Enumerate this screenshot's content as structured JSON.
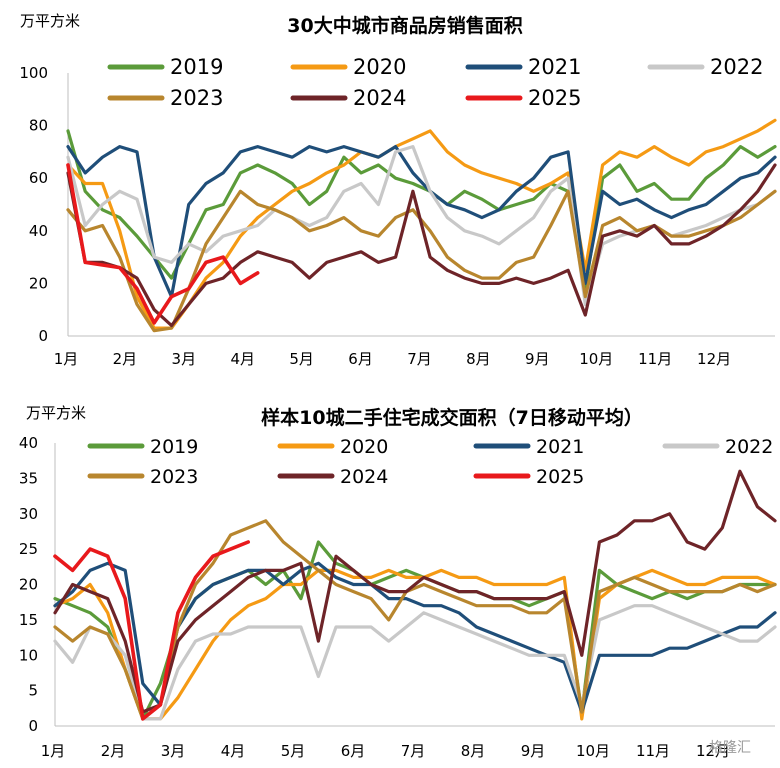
{
  "watermark": "格隆汇",
  "chart_data": [
    {
      "type": "line",
      "title": "30大中城市商品房销售面积",
      "unit_label": "万平方米",
      "ylim": [
        0,
        100
      ],
      "yticks": [
        "0",
        "20",
        "40",
        "60",
        "80",
        "100"
      ],
      "months": [
        "1月",
        "2月",
        "3月",
        "4月",
        "5月",
        "6月",
        "7月",
        "8月",
        "9月",
        "10月",
        "11月",
        "12月"
      ],
      "legend_position": "top",
      "series": [
        {
          "name": "2019",
          "color": "#5b9b3a",
          "values": [
            78,
            55,
            48,
            45,
            38,
            30,
            22,
            35,
            48,
            50,
            62,
            65,
            62,
            58,
            50,
            55,
            68,
            62,
            65,
            60,
            58,
            55,
            50,
            55,
            52,
            48,
            50,
            52,
            58,
            55,
            18,
            60,
            65,
            55,
            58,
            52,
            52,
            60,
            65,
            72,
            68,
            72
          ]
        },
        {
          "name": "2020",
          "color": "#f59a14",
          "values": [
            65,
            58,
            58,
            40,
            15,
            3,
            3,
            12,
            22,
            28,
            38,
            45,
            50,
            55,
            58,
            62,
            65,
            70,
            68,
            72,
            75,
            78,
            70,
            65,
            62,
            60,
            58,
            55,
            58,
            62,
            25,
            65,
            70,
            68,
            72,
            68,
            65,
            70,
            72,
            75,
            78,
            82
          ]
        },
        {
          "name": "2021",
          "color": "#1f4e79",
          "values": [
            72,
            62,
            68,
            72,
            70,
            30,
            15,
            50,
            58,
            62,
            70,
            72,
            70,
            68,
            72,
            70,
            72,
            70,
            68,
            72,
            62,
            55,
            50,
            48,
            45,
            48,
            55,
            60,
            68,
            70,
            20,
            55,
            50,
            52,
            48,
            45,
            48,
            50,
            55,
            60,
            62,
            68
          ]
        },
        {
          "name": "2022",
          "color": "#c8c8c8",
          "values": [
            68,
            42,
            50,
            55,
            52,
            30,
            28,
            35,
            32,
            38,
            40,
            42,
            48,
            45,
            42,
            45,
            55,
            58,
            50,
            70,
            72,
            55,
            45,
            40,
            38,
            35,
            40,
            45,
            55,
            60,
            12,
            35,
            38,
            40,
            42,
            38,
            40,
            42,
            45,
            48,
            50,
            55
          ]
        },
        {
          "name": "2023",
          "color": "#b8862e",
          "values": [
            48,
            40,
            42,
            30,
            12,
            2,
            3,
            18,
            35,
            45,
            55,
            50,
            48,
            45,
            40,
            42,
            45,
            40,
            38,
            45,
            48,
            40,
            30,
            25,
            22,
            22,
            28,
            30,
            42,
            55,
            15,
            42,
            45,
            40,
            42,
            38,
            38,
            40,
            42,
            45,
            50,
            55
          ]
        },
        {
          "name": "2024",
          "color": "#6e2428",
          "values": [
            62,
            28,
            28,
            26,
            22,
            10,
            4,
            12,
            20,
            22,
            28,
            32,
            30,
            28,
            22,
            28,
            30,
            32,
            28,
            30,
            55,
            30,
            25,
            22,
            20,
            20,
            22,
            20,
            22,
            25,
            8,
            38,
            40,
            38,
            42,
            35,
            35,
            38,
            42,
            48,
            55,
            65
          ]
        },
        {
          "name": "2025",
          "color": "#e8191c",
          "values": [
            65,
            28,
            27,
            26,
            18,
            5,
            15,
            18,
            28,
            30,
            20,
            24
          ]
        }
      ]
    },
    {
      "type": "line",
      "title": "样本10城二手住宅成交面积（7日移动平均）",
      "unit_label": "万平方米",
      "ylim": [
        0,
        40
      ],
      "yticks": [
        "0",
        "5",
        "10",
        "15",
        "20",
        "25",
        "30",
        "35",
        "40"
      ],
      "months": [
        "1月",
        "2月",
        "3月",
        "4月",
        "5月",
        "6月",
        "7月",
        "8月",
        "9月",
        "10月",
        "11月",
        "12月"
      ],
      "legend_position": "top",
      "series": [
        {
          "name": "2019",
          "color": "#5b9b3a",
          "values": [
            18,
            17,
            16,
            14,
            8,
            1,
            6,
            14,
            18,
            20,
            21,
            22,
            20,
            22,
            18,
            26,
            23,
            22,
            20,
            21,
            22,
            21,
            20,
            19,
            19,
            18,
            18,
            17,
            18,
            19,
            2,
            22,
            20,
            19,
            18,
            19,
            18,
            19,
            19,
            20,
            20,
            20
          ]
        },
        {
          "name": "2020",
          "color": "#f59a14",
          "values": [
            17,
            18,
            20,
            16,
            8,
            1,
            1,
            4,
            8,
            12,
            15,
            17,
            18,
            20,
            20,
            22,
            22,
            21,
            21,
            22,
            21,
            21,
            22,
            21,
            21,
            20,
            20,
            20,
            20,
            21,
            1,
            18,
            20,
            21,
            22,
            21,
            20,
            20,
            21,
            21,
            21,
            20
          ]
        },
        {
          "name": "2021",
          "color": "#1f4e79",
          "values": [
            17,
            19,
            22,
            23,
            22,
            6,
            3,
            14,
            18,
            20,
            21,
            22,
            22,
            20,
            22,
            23,
            21,
            20,
            20,
            18,
            18,
            17,
            17,
            16,
            14,
            13,
            12,
            11,
            10,
            9,
            2,
            10,
            10,
            10,
            10,
            11,
            11,
            12,
            13,
            14,
            14,
            16
          ]
        },
        {
          "name": "2022",
          "color": "#c8c8c8",
          "values": [
            12,
            9,
            14,
            13,
            10,
            1,
            1,
            8,
            12,
            13,
            13,
            14,
            14,
            14,
            14,
            7,
            14,
            14,
            14,
            12,
            14,
            16,
            15,
            14,
            13,
            12,
            11,
            10,
            10,
            10,
            3,
            15,
            16,
            17,
            17,
            16,
            15,
            14,
            13,
            12,
            12,
            14
          ]
        },
        {
          "name": "2023",
          "color": "#b8862e",
          "values": [
            14,
            12,
            14,
            13,
            8,
            1,
            3,
            14,
            20,
            23,
            27,
            28,
            29,
            26,
            24,
            22,
            20,
            19,
            18,
            15,
            19,
            20,
            19,
            18,
            17,
            17,
            17,
            16,
            16,
            18,
            2,
            19,
            20,
            21,
            20,
            19,
            19,
            19,
            19,
            20,
            19,
            20
          ]
        },
        {
          "name": "2024",
          "color": "#6e2428",
          "values": [
            16,
            20,
            19,
            18,
            12,
            2,
            3,
            12,
            15,
            17,
            19,
            21,
            22,
            22,
            23,
            12,
            24,
            22,
            20,
            19,
            19,
            21,
            20,
            19,
            19,
            18,
            18,
            18,
            18,
            19,
            10,
            26,
            27,
            29,
            29,
            30,
            26,
            25,
            28,
            36,
            31,
            29
          ]
        },
        {
          "name": "2025",
          "color": "#e8191c",
          "values": [
            24,
            22,
            25,
            24,
            18,
            1,
            3,
            16,
            21,
            24,
            25,
            26
          ]
        }
      ]
    }
  ]
}
